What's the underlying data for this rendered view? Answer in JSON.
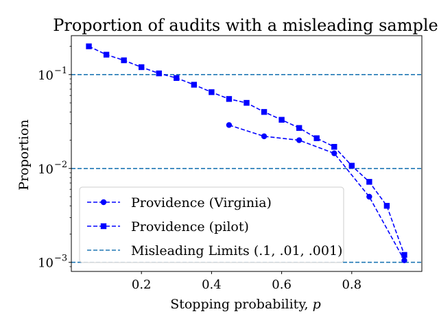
{
  "chart_data": {
    "type": "line",
    "title": "Proportion of audits with a misleading sample",
    "xlabel": "Stopping probability, ",
    "xlabel_var": "p",
    "ylabel": "Proportion",
    "xlim": [
      0.0,
      1.0
    ],
    "ylim": [
      0.0008,
      0.26
    ],
    "yscale": "log",
    "grid": false,
    "legend_position": "lower-left",
    "x_ticks": [
      {
        "value": 0.2,
        "label": "0.2"
      },
      {
        "value": 0.4,
        "label": "0.4"
      },
      {
        "value": 0.6,
        "label": "0.6"
      },
      {
        "value": 0.8,
        "label": "0.8"
      }
    ],
    "y_ticks": [
      {
        "value": 0.1,
        "base": "10",
        "exp": "−1"
      },
      {
        "value": 0.01,
        "base": "10",
        "exp": "−2"
      },
      {
        "value": 0.001,
        "base": "10",
        "exp": "−3"
      }
    ],
    "series": [
      {
        "name": "Providence (Virginia)",
        "color": "#0000ff",
        "marker": "circle",
        "linestyle": "dashed",
        "x": [
          0.45,
          0.55,
          0.65,
          0.75,
          0.85,
          0.95
        ],
        "y": [
          0.029,
          0.022,
          0.02,
          0.0145,
          0.005,
          0.00105
        ]
      },
      {
        "name": "Providence (pilot)",
        "color": "#0000ff",
        "marker": "square",
        "linestyle": "dashed",
        "x": [
          0.05,
          0.1,
          0.15,
          0.2,
          0.25,
          0.3,
          0.35,
          0.4,
          0.45,
          0.5,
          0.55,
          0.6,
          0.65,
          0.7,
          0.75,
          0.8,
          0.85,
          0.9,
          0.95
        ],
        "y": [
          0.2,
          0.163,
          0.142,
          0.12,
          0.103,
          0.092,
          0.078,
          0.065,
          0.055,
          0.05,
          0.04,
          0.033,
          0.027,
          0.021,
          0.017,
          0.0107,
          0.0072,
          0.004,
          0.0012
        ]
      }
    ],
    "reference_lines": {
      "name": "Misleading Limits (.1, .01, .001)",
      "color": "#1f77b4",
      "linestyle": "dashed",
      "values": [
        0.1,
        0.01,
        0.001
      ]
    }
  }
}
